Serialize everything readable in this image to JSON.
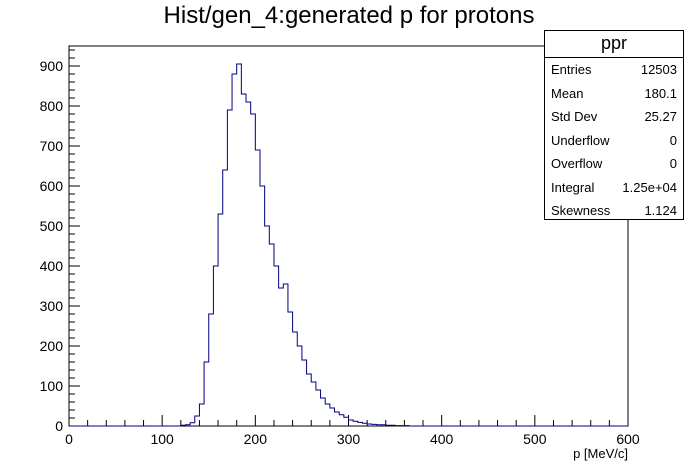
{
  "title": "Hist/gen_4:generated p for protons",
  "stats": {
    "name": "ppr",
    "rows": [
      {
        "key": "Entries",
        "value": "12503"
      },
      {
        "key": "Mean",
        "value": "180.1"
      },
      {
        "key": "Std Dev",
        "value": "25.27"
      },
      {
        "key": "Underflow",
        "value": "0"
      },
      {
        "key": "Overflow",
        "value": "0"
      },
      {
        "key": "Integral",
        "value": "1.25e+04"
      },
      {
        "key": "Skewness",
        "value": "1.124"
      }
    ]
  },
  "chart_data": {
    "type": "bar",
    "style": "step-histogram",
    "title": "Hist/gen_4:generated p for protons",
    "xlabel": "p [MeV/c]",
    "ylabel": "",
    "xlim": [
      0,
      600
    ],
    "ylim": [
      0,
      950
    ],
    "x_ticks": [
      0,
      100,
      200,
      300,
      400,
      500,
      600
    ],
    "y_ticks": [
      0,
      100,
      200,
      300,
      400,
      500,
      600,
      700,
      800,
      900
    ],
    "bin_width": 5,
    "bin_start": 0,
    "values": [
      0,
      0,
      0,
      0,
      0,
      0,
      0,
      0,
      0,
      0,
      0,
      0,
      0,
      0,
      0,
      0,
      0,
      0,
      0,
      0,
      0,
      0,
      0,
      0,
      2,
      3,
      8,
      25,
      55,
      160,
      280,
      400,
      530,
      640,
      790,
      880,
      905,
      830,
      810,
      780,
      690,
      600,
      500,
      455,
      400,
      345,
      355,
      285,
      235,
      200,
      165,
      130,
      110,
      90,
      70,
      55,
      45,
      35,
      28,
      22,
      15,
      12,
      9,
      7,
      5,
      4,
      3,
      3,
      2,
      2,
      1,
      1,
      1,
      0,
      0,
      0,
      0,
      0,
      0,
      0,
      0,
      0,
      0,
      0,
      0,
      0,
      0,
      0,
      0,
      0,
      0,
      0,
      0,
      0,
      0,
      0,
      0,
      0,
      0,
      0,
      0,
      0,
      0,
      0,
      0,
      0,
      0,
      0,
      0,
      0,
      0,
      0,
      0,
      0,
      0,
      0,
      0,
      0,
      0,
      0
    ],
    "line_color": "#000080",
    "grid": false,
    "legend": "top-right"
  }
}
